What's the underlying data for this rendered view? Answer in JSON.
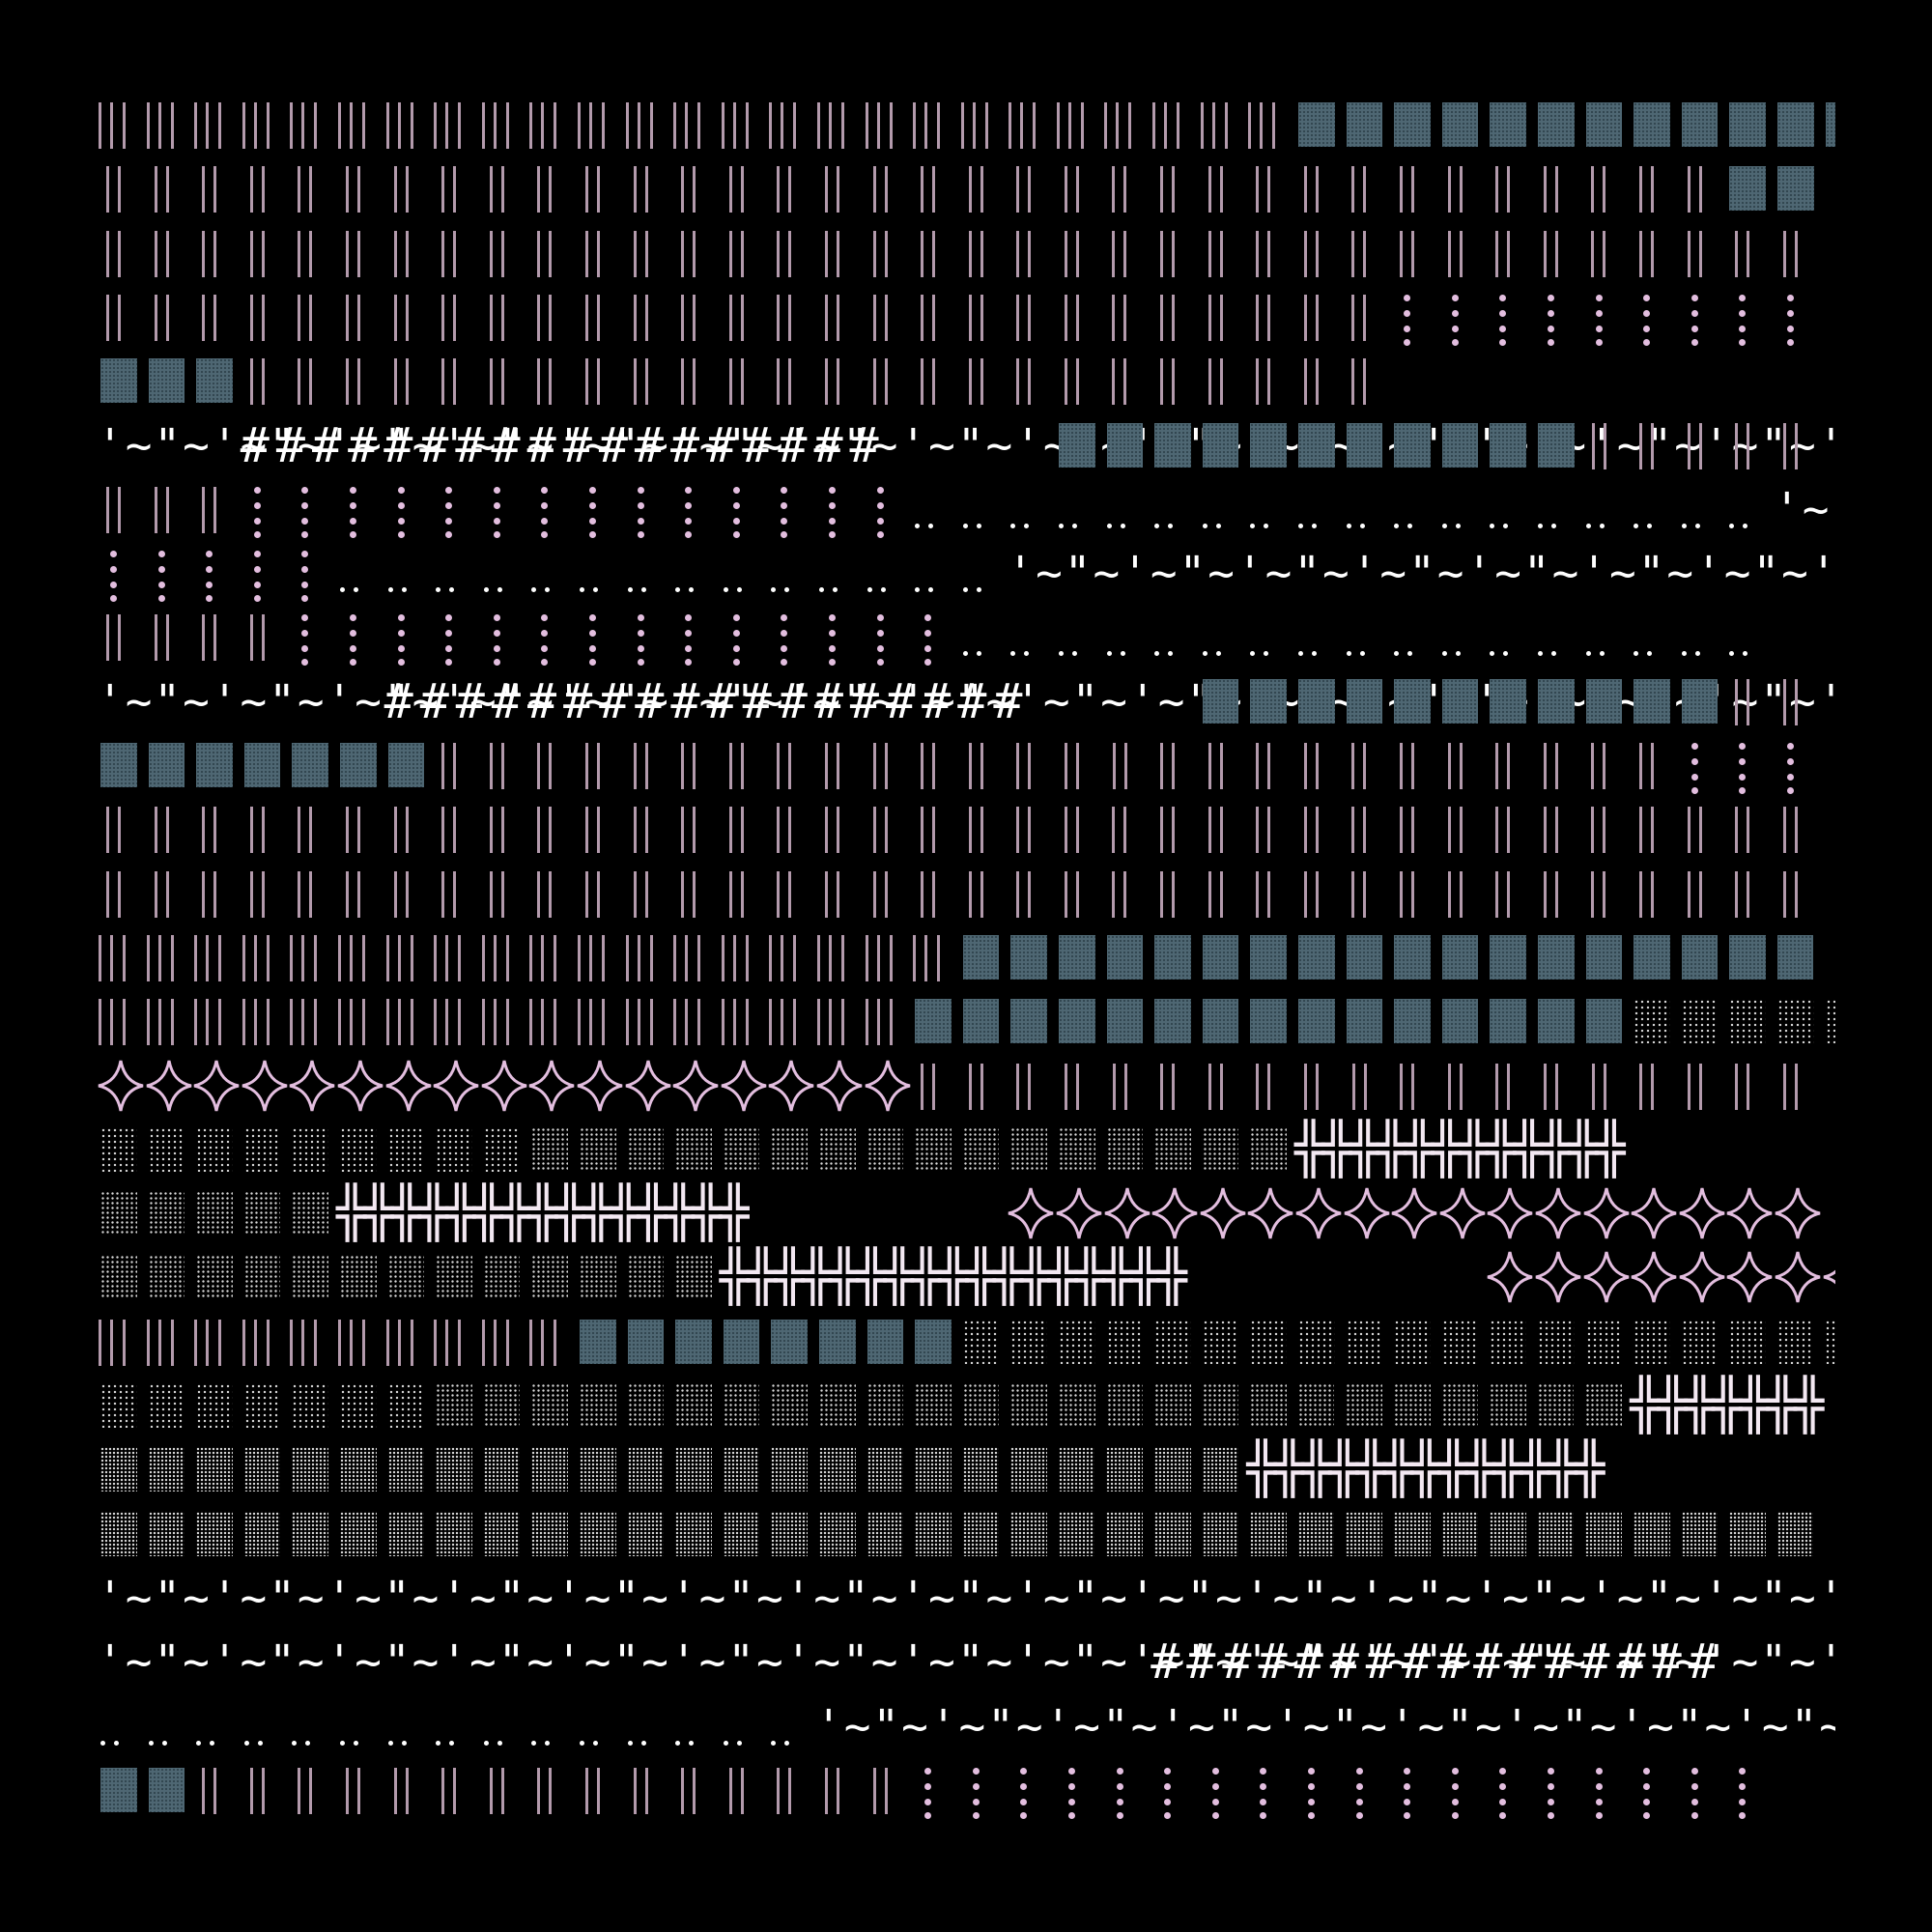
{
  "palette": {
    "background": "#000000",
    "pipe": "#b39aac",
    "pink": "#e3bedf",
    "blue_block": "#4e6773",
    "grey_dots": "#d9d9d9",
    "white": "#ffffff"
  },
  "glyphs": {
    "tilde_pattern": "'~\"~'~\"~'~\"~'~\"~'~\"~'~\"~'~\"~'~\"~'~\"~'~\"~'~\"~'~\"~'~\"~'~\"~'~\"~'~\"~'~\"~'~\"~'~\"~'~\"~",
    "hash": "#",
    "cross": "╬",
    "dots_pair": "..",
    "pipe": "|"
  },
  "rows": [
    [
      [
        "bars",
        25
      ],
      [
        "blue",
        14
      ]
    ],
    [
      [
        "bars",
        34
      ],
      [
        "blue",
        2
      ]
    ],
    [
      [
        "bars",
        36
      ]
    ],
    [
      [
        "bars",
        27
      ],
      [
        "pdots",
        9
      ]
    ],
    [
      [
        "blue",
        3
      ],
      [
        "bars",
        24
      ]
    ],
    [
      [
        "tilde",
        3
      ],
      [
        "hash",
        17
      ],
      [
        "blue",
        11
      ],
      [
        "bars",
        5
      ]
    ],
    [
      [
        "bars",
        3
      ],
      [
        "pdots",
        14
      ],
      [
        "ddots",
        18
      ],
      [
        "tilde",
        2
      ]
    ],
    [
      [
        "pdots",
        5
      ],
      [
        "ddots",
        14
      ],
      [
        "tilde",
        17
      ]
    ],
    [
      [
        "bars",
        4
      ],
      [
        "pdots",
        14
      ],
      [
        "ddots",
        17
      ]
    ],
    [
      [
        "tilde",
        6
      ],
      [
        "hash",
        17
      ],
      [
        "blue",
        11
      ],
      [
        "bars",
        2
      ]
    ],
    [
      [
        "blue",
        7
      ],
      [
        "bars",
        26
      ],
      [
        "pdots",
        3
      ]
    ],
    [
      [
        "bars",
        36
      ]
    ],
    [
      [
        "bars",
        36
      ]
    ],
    [
      [
        "bars",
        18
      ],
      [
        "blue",
        18
      ]
    ],
    [
      [
        "bars",
        17
      ],
      [
        "blue",
        15
      ],
      [
        "gl",
        5
      ]
    ],
    [
      [
        "star",
        17
      ],
      [
        "bars",
        19
      ]
    ],
    [
      [
        "gl",
        9
      ],
      [
        "gm",
        16
      ],
      [
        "cross",
        11
      ]
    ],
    [
      [
        "gm",
        5
      ],
      [
        "cross",
        14
      ],
      [
        "star",
        17
      ]
    ],
    [
      [
        "gm",
        13
      ],
      [
        "cross",
        16
      ],
      [
        "star",
        8
      ]
    ],
    [
      [
        "bars",
        10
      ],
      [
        "blue",
        8
      ],
      [
        "gl",
        19
      ]
    ],
    [
      [
        "gl",
        7
      ],
      [
        "gm",
        25
      ],
      [
        "cross",
        6
      ]
    ],
    [
      [
        "gd",
        24
      ],
      [
        "cross",
        12
      ]
    ],
    [
      [
        "gd",
        36
      ]
    ],
    [
      [
        "tilde",
        36
      ]
    ],
    [
      [
        "tilde",
        22
      ],
      [
        "hash",
        15
      ]
    ],
    [
      [
        "ddots",
        15
      ],
      [
        "tilde",
        21
      ]
    ],
    [
      [
        "blue",
        2
      ],
      [
        "bars",
        15
      ],
      [
        "pdots",
        18
      ]
    ]
  ]
}
